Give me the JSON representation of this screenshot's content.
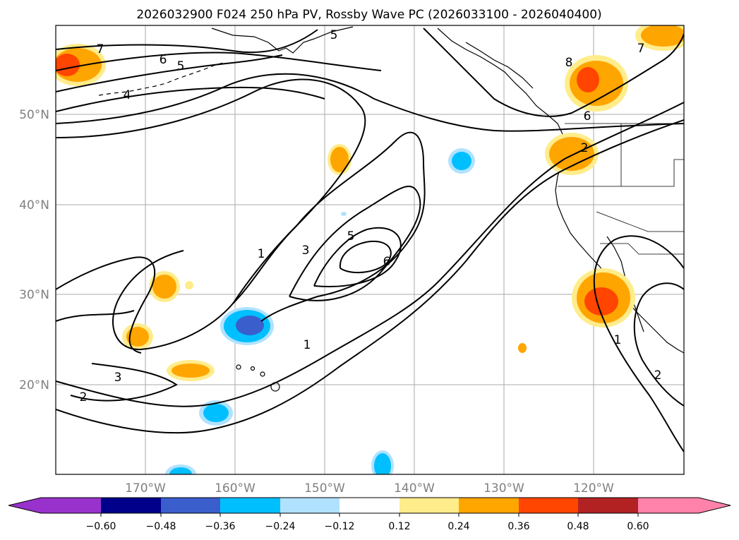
{
  "title": "2026032900 F024 250 hPa PV, Rossby Wave PC (2026033100 - 2026040400)",
  "map": {
    "region": "North Pacific and western North America",
    "lat_range": [
      10,
      60
    ],
    "lon_range": [
      -180,
      -110
    ],
    "lat_ticks": [
      {
        "value": 50,
        "label": "50°N"
      },
      {
        "value": 40,
        "label": "40°N"
      },
      {
        "value": 30,
        "label": "30°N"
      },
      {
        "value": 20,
        "label": "20°N"
      }
    ],
    "lon_ticks": [
      {
        "value": -170,
        "label": "170°W"
      },
      {
        "value": -160,
        "label": "160°W"
      },
      {
        "value": -150,
        "label": "150°W"
      },
      {
        "value": -140,
        "label": "140°W"
      },
      {
        "value": -130,
        "label": "130°W"
      },
      {
        "value": -120,
        "label": "120°W"
      }
    ],
    "contour_labels": [
      "7",
      "6",
      "5",
      "4",
      "5",
      "8",
      "6",
      "2",
      "1",
      "3",
      "5",
      "6",
      "1",
      "3",
      "2",
      "1",
      "2",
      "7"
    ]
  },
  "colorbar": {
    "ticks": [
      "−0.60",
      "−0.48",
      "−0.36",
      "−0.24",
      "−0.12",
      "0.12",
      "0.24",
      "0.36",
      "0.48",
      "0.60"
    ],
    "colors": [
      "#9932cc",
      "#00008b",
      "#3a5fcd",
      "#00bfff",
      "#b0e2ff",
      "#ffffff",
      "#ffec8b",
      "#ffa500",
      "#ff4500",
      "#b22222",
      "#ff82ab"
    ]
  },
  "fill_colors": {
    "pos1": "#ffec8b",
    "pos2": "#ffa500",
    "pos3": "#ff4500",
    "neg1": "#b0e2ff",
    "neg2": "#00bfff",
    "neg3": "#3a5fcd"
  }
}
